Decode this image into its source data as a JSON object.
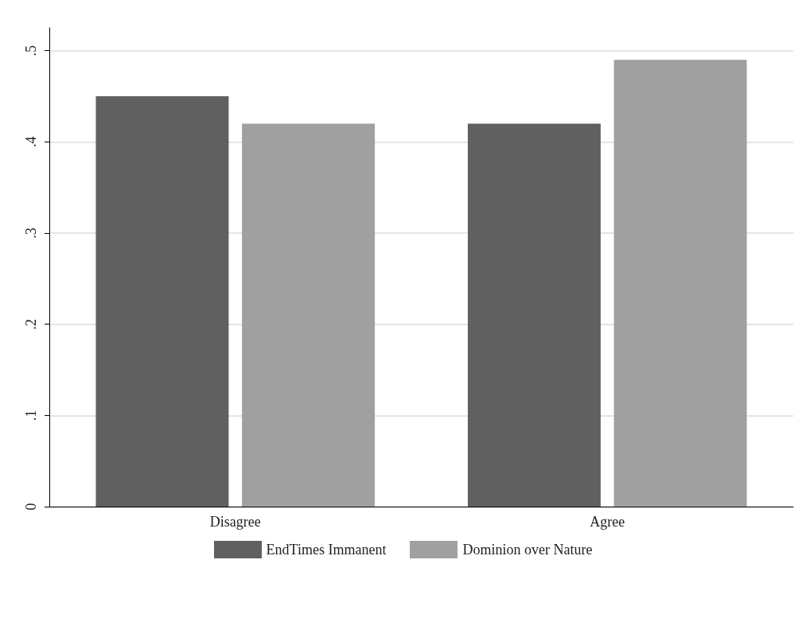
{
  "chart_data": {
    "type": "bar",
    "categories": [
      "Disagree",
      "Agree"
    ],
    "series": [
      {
        "name": "EndTimes Immanent",
        "color": "#606060",
        "values": [
          0.45,
          0.42
        ]
      },
      {
        "name": "Dominion over Nature",
        "color": "#a0a0a0",
        "values": [
          0.42,
          0.49
        ]
      }
    ],
    "ylim": [
      0,
      0.525
    ],
    "yticks": [
      0,
      {
        "value": 0.1,
        "label": ".1"
      },
      {
        "value": 0.2,
        "label": ".2"
      },
      {
        "value": 0.3,
        "label": ".3"
      },
      {
        "value": 0.4,
        "label": ".4"
      },
      {
        "value": 0.5,
        "label": ".5"
      }
    ],
    "grid": "y",
    "legend": "bottom"
  }
}
